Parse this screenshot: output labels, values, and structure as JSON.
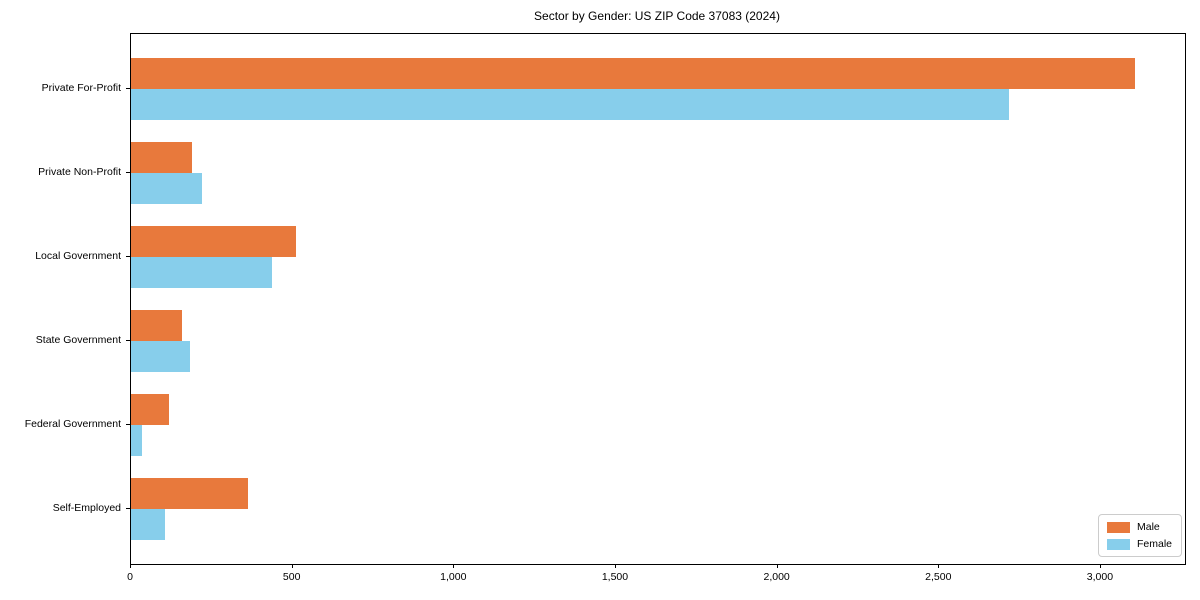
{
  "chart_data": {
    "type": "bar",
    "orientation": "horizontal",
    "title": "Sector by Gender: US ZIP Code 37083 (2024)",
    "categories": [
      "Private For-Profit",
      "Private Non-Profit",
      "Local Government",
      "State Government",
      "Federal Government",
      "Self-Employed"
    ],
    "series": [
      {
        "name": "Male",
        "color": "#E8793C",
        "values": [
          3105,
          190,
          510,
          158,
          117,
          363
        ]
      },
      {
        "name": "Female",
        "color": "#87CEEB",
        "values": [
          2715,
          220,
          435,
          183,
          33,
          105
        ]
      }
    ],
    "xlabel": "",
    "ylabel": "",
    "xlim": [
      0,
      3260
    ],
    "xticks": [
      0,
      500,
      1000,
      1500,
      2000,
      2500,
      3000
    ],
    "xtick_labels": [
      "0",
      "500",
      "1,000",
      "1,500",
      "2,000",
      "2,500",
      "3,000"
    ],
    "legend_position": "lower right",
    "grid": false,
    "background_color": "#ffffff",
    "spine_color": "#000000"
  }
}
